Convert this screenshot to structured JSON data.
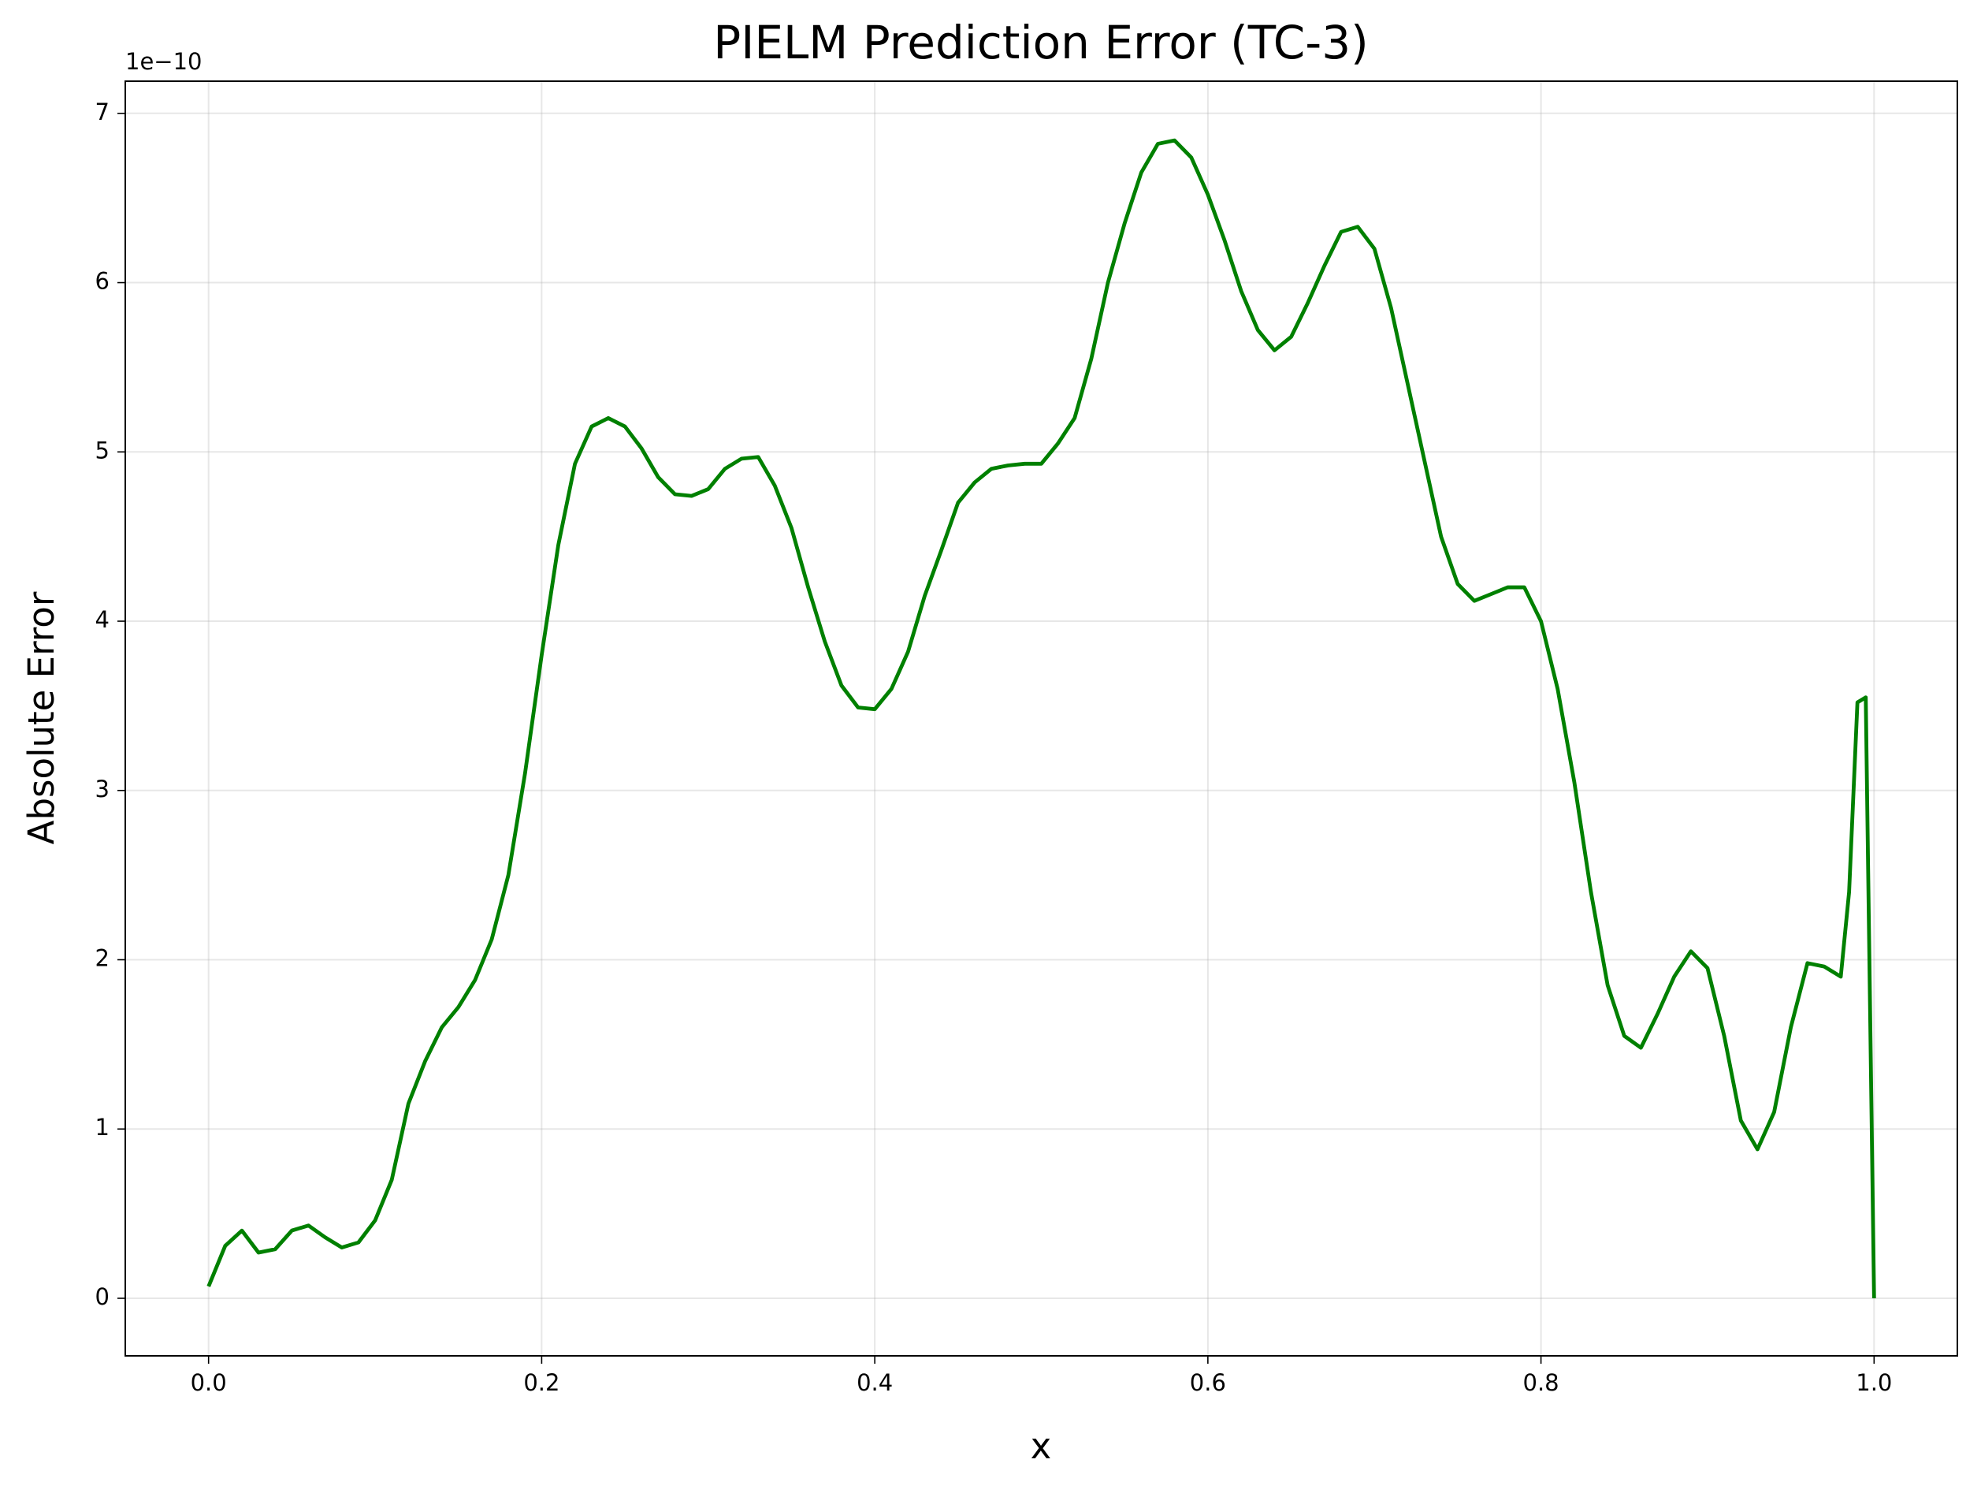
{
  "chart_data": {
    "type": "line",
    "title": "PIELM Prediction Error (TC-3)",
    "x_label": "x",
    "y_label": "Absolute Error",
    "y_offset_label": "1e−10",
    "x": [
      0.0,
      0.01,
      0.02,
      0.03,
      0.04,
      0.05,
      0.06,
      0.07,
      0.08,
      0.09,
      0.1,
      0.11,
      0.12,
      0.13,
      0.14,
      0.15,
      0.16,
      0.17,
      0.18,
      0.19,
      0.2,
      0.21,
      0.22,
      0.23,
      0.24,
      0.25,
      0.26,
      0.27,
      0.28,
      0.29,
      0.3,
      0.31,
      0.32,
      0.33,
      0.34,
      0.35,
      0.36,
      0.37,
      0.38,
      0.39,
      0.4,
      0.41,
      0.42,
      0.43,
      0.44,
      0.45,
      0.46,
      0.47,
      0.48,
      0.49,
      0.5,
      0.51,
      0.52,
      0.53,
      0.54,
      0.55,
      0.56,
      0.57,
      0.58,
      0.59,
      0.6,
      0.61,
      0.62,
      0.63,
      0.64,
      0.65,
      0.66,
      0.67,
      0.68,
      0.69,
      0.7,
      0.71,
      0.72,
      0.73,
      0.74,
      0.75,
      0.76,
      0.77,
      0.78,
      0.79,
      0.8,
      0.81,
      0.82,
      0.83,
      0.84,
      0.85,
      0.86,
      0.87,
      0.88,
      0.89,
      0.9,
      0.91,
      0.92,
      0.93,
      0.94,
      0.95,
      0.96,
      0.97,
      0.98,
      0.985,
      0.99,
      0.995,
      1.0
    ],
    "series": [
      {
        "name": "Absolute Error",
        "color": "#008000",
        "values": [
          0.07,
          0.31,
          0.4,
          0.27,
          0.29,
          0.4,
          0.43,
          0.36,
          0.3,
          0.33,
          0.46,
          0.7,
          1.15,
          1.4,
          1.6,
          1.72,
          1.88,
          2.12,
          2.5,
          3.1,
          3.8,
          4.45,
          4.93,
          5.15,
          5.2,
          5.15,
          5.02,
          4.85,
          4.75,
          4.74,
          4.78,
          4.9,
          4.96,
          4.97,
          4.8,
          4.55,
          4.2,
          3.88,
          3.62,
          3.49,
          3.48,
          3.6,
          3.82,
          4.15,
          4.42,
          4.7,
          4.82,
          4.9,
          4.92,
          4.93,
          4.93,
          5.05,
          5.2,
          5.55,
          6.0,
          6.35,
          6.65,
          6.82,
          6.84,
          6.74,
          6.52,
          6.25,
          5.95,
          5.72,
          5.6,
          5.68,
          5.88,
          6.1,
          6.3,
          6.33,
          6.2,
          5.85,
          5.4,
          4.95,
          4.5,
          4.22,
          4.12,
          4.16,
          4.2,
          4.2,
          4.0,
          3.6,
          3.05,
          2.4,
          1.85,
          1.55,
          1.48,
          1.68,
          1.9,
          2.05,
          1.95,
          1.55,
          1.05,
          0.88,
          1.1,
          1.6,
          1.98,
          1.96,
          1.9,
          2.4,
          3.52,
          3.55,
          0.0
        ]
      }
    ],
    "xlim": [
      -0.05,
      1.05
    ],
    "ylim": [
      -0.34,
      7.19
    ],
    "xticks": [
      {
        "value": 0,
        "label": "0.0"
      },
      0.2,
      0.4,
      0.6,
      0.8,
      {
        "value": 1,
        "label": "1.0"
      }
    ],
    "yticks": [
      0,
      1,
      2,
      3,
      4,
      5,
      6,
      7
    ],
    "grid": true
  }
}
